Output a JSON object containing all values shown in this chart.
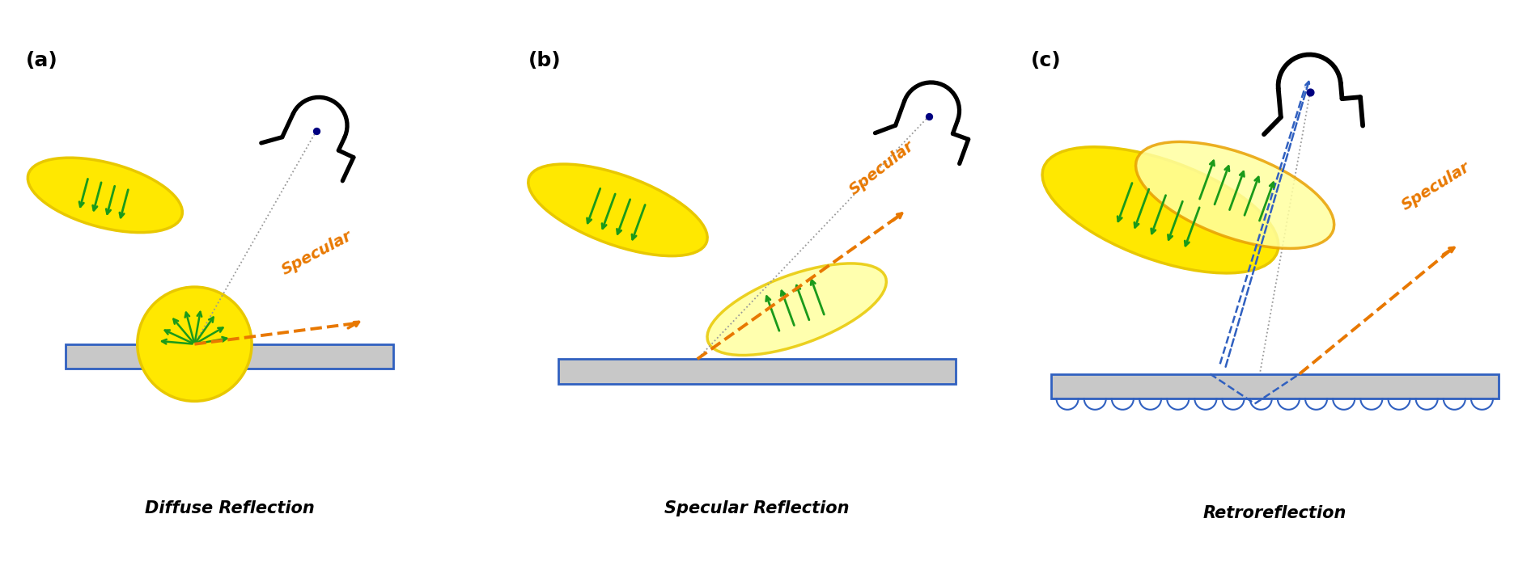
{
  "bg_color": "#ffffff",
  "yellow_fill": "#FFE800",
  "yellow_edge": "#E8C800",
  "yellow_light_fill": "#FFFFA0",
  "yellow_light_edge": "#E8C800",
  "green_arrow": "#1A9A1A",
  "orange_dashed": "#E87800",
  "blue_dot": "#000080",
  "gray_surface": "#C8C8C8",
  "blue_border": "#3060C0",
  "black_camera": "#000000",
  "gray_dashed": "#999999",
  "blue_dashed": "#3060C0",
  "label_a": "(a)",
  "label_b": "(b)",
  "label_c": "(c)",
  "title_a": "Diffuse Reflection",
  "title_b": "Specular Reflection",
  "title_c": "Retroreflection",
  "specular_text": "Specular",
  "specular_color": "#E87800"
}
